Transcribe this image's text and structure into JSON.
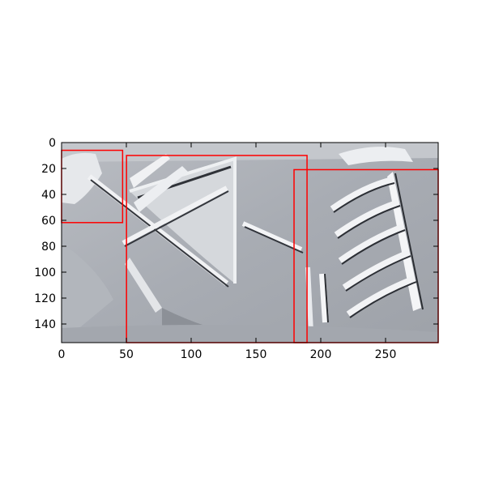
{
  "image": {
    "subject": "embossed-tablet-photo",
    "palette": [
      "#9a9ea5",
      "#c9ccd2",
      "#e9ebee",
      "#2a2d33"
    ]
  },
  "axes": {
    "x_ticks": [
      "0",
      "50",
      "100",
      "150",
      "200",
      "250"
    ],
    "y_ticks": [
      "0",
      "20",
      "40",
      "60",
      "80",
      "100",
      "120",
      "140"
    ],
    "xlim": [
      0,
      290
    ],
    "ylim": [
      155,
      0
    ],
    "y_inverted": true
  },
  "boxes": {
    "color": "#ff0000",
    "items": [
      {
        "x0": 0,
        "y0": 6,
        "x1": 47,
        "y1": 62
      },
      {
        "x0": 50,
        "y0": 10,
        "x1": 189,
        "y1": 155
      },
      {
        "x0": 179,
        "y0": 21,
        "x1": 290,
        "y1": 155
      }
    ]
  }
}
